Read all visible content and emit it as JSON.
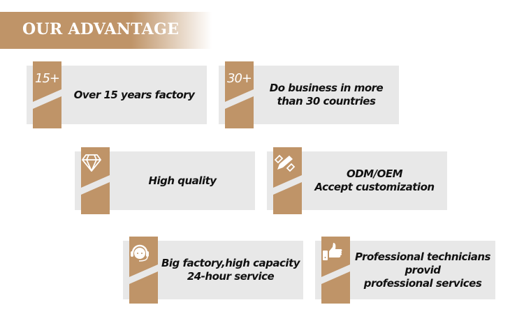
{
  "header": {
    "title": "OUR ADVANTAGE"
  },
  "colors": {
    "accent": "#bf9468",
    "card_bg": "#e8e8e8"
  },
  "cards": [
    {
      "badge": "15+",
      "icon": "",
      "lines": [
        "Over 15 years factory"
      ]
    },
    {
      "badge": "30+",
      "icon": "",
      "lines": [
        "Do business in more",
        "than 30 countries"
      ]
    },
    {
      "badge": "",
      "icon": "diamond-icon",
      "lines": [
        "High quality"
      ]
    },
    {
      "badge": "",
      "icon": "pencil-ruler-icon",
      "lines": [
        "ODM/OEM",
        "Accept customization"
      ]
    },
    {
      "badge": "",
      "icon": "headset-icon",
      "lines": [
        "Big factory,high capacity",
        "24-hour service"
      ]
    },
    {
      "badge": "",
      "icon": "thumbs-up-icon",
      "lines": [
        "Professional technicians",
        "provid",
        "professional services"
      ]
    }
  ]
}
